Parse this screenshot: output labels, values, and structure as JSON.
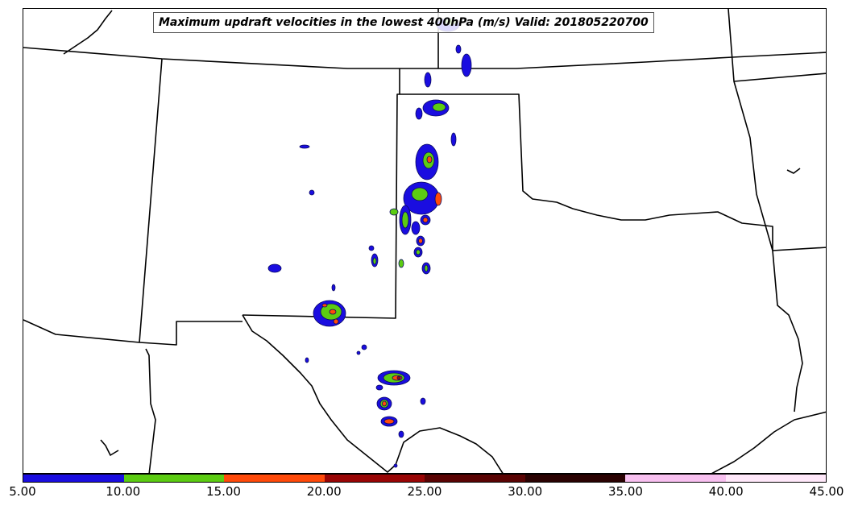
{
  "title": "Maximum updraft velocities in the lowest 400hPa (m/s) Valid: 201805220700",
  "colorbar": {
    "colors": [
      "#1a0de0",
      "#5ccc12",
      "#ff4a0a",
      "#990505",
      "#5a0303",
      "#2a0202",
      "#f8c0f0",
      "#ffe8fa"
    ],
    "ticks": [
      "5.00",
      "10.00",
      "15.00",
      "20.00",
      "25.00",
      "30.00",
      "35.00",
      "40.00",
      "45.00"
    ],
    "tick_values": [
      5,
      10,
      15,
      20,
      25,
      30,
      35,
      40,
      45
    ]
  },
  "map": {
    "land_color": "#ffffff",
    "boundary_color": "#000000"
  }
}
